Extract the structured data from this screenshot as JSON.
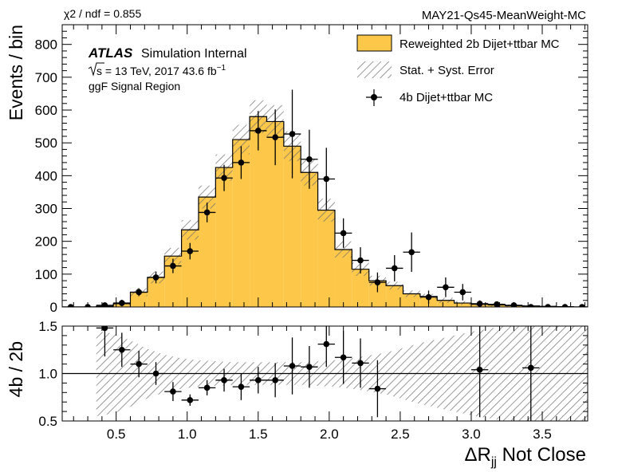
{
  "header": {
    "chi2": "χ2 / ndf = 0.855",
    "tag": "MAY21-Qs45-MeanWeight-MC"
  },
  "labels": {
    "atlas": "ATLAS",
    "atlas_sub": "Simulation Internal",
    "energy_prefix": "s",
    "energy_text": " = 13 TeV, 2017 43.6 fb",
    "energy_sup": "−1",
    "region": "ggF Signal Region"
  },
  "colors": {
    "fill": "#fdc84a",
    "edge": "#000000",
    "hatch": "#6e6e6e"
  },
  "chart_data": [
    {
      "type": "bar",
      "panel": "main",
      "ylabel": "Events / bin",
      "xlim": [
        0.12,
        3.82
      ],
      "ylim": [
        0,
        860
      ],
      "y_ticks": [
        0,
        100,
        200,
        300,
        400,
        500,
        600,
        700,
        800
      ],
      "legend": [
        "Reweighted 2b Dijet+ttbar MC",
        "Stat. + Syst. Error",
        "4b Dijet+ttbar MC"
      ],
      "legend_position": "top-right",
      "bin_edges": [
        0.12,
        0.24,
        0.36,
        0.48,
        0.6,
        0.72,
        0.84,
        0.96,
        1.08,
        1.2,
        1.32,
        1.44,
        1.56,
        1.68,
        1.8,
        1.92,
        2.04,
        2.16,
        2.28,
        2.4,
        2.52,
        2.64,
        2.76,
        2.88,
        3.0,
        3.12,
        3.24,
        3.36,
        3.48,
        3.6,
        3.72,
        3.82
      ],
      "series": [
        {
          "name": "Reweighted 2b Dijet+ttbar MC",
          "style": "step-filled",
          "values": [
            0,
            0,
            2,
            10,
            45,
            90,
            155,
            235,
            335,
            425,
            510,
            580,
            565,
            490,
            410,
            295,
            175,
            115,
            80,
            65,
            40,
            32,
            20,
            12,
            8,
            6,
            4,
            3,
            2,
            1,
            0
          ],
          "err": [
            0,
            0,
            2,
            6,
            12,
            18,
            25,
            30,
            35,
            40,
            45,
            50,
            50,
            45,
            40,
            35,
            25,
            20,
            15,
            12,
            10,
            8,
            8,
            6,
            5,
            5,
            4,
            3,
            2,
            1,
            0
          ]
        },
        {
          "name": "4b Dijet+ttbar MC",
          "style": "points",
          "x": [
            0.18,
            0.3,
            0.42,
            0.54,
            0.66,
            0.78,
            0.9,
            1.02,
            1.14,
            1.26,
            1.38,
            1.5,
            1.62,
            1.74,
            1.86,
            1.98,
            2.1,
            2.22,
            2.34,
            2.46,
            2.58,
            2.7,
            2.82,
            2.94,
            3.06,
            3.18,
            3.3,
            3.42,
            3.54,
            3.66,
            3.78
          ],
          "y": [
            0,
            0,
            5,
            12,
            45,
            90,
            125,
            170,
            288,
            393,
            440,
            537,
            517,
            527,
            450,
            390,
            225,
            142,
            75,
            118,
            167,
            30,
            60,
            45,
            10,
            8,
            5,
            0,
            0,
            0,
            0
          ],
          "err": [
            0,
            0,
            8,
            10,
            12,
            18,
            22,
            25,
            30,
            40,
            50,
            60,
            85,
            135,
            90,
            95,
            45,
            40,
            30,
            40,
            60,
            20,
            30,
            25,
            10,
            8,
            6,
            0,
            0,
            0,
            0
          ]
        }
      ]
    },
    {
      "type": "scatter",
      "panel": "ratio",
      "xlabel": "ΔR",
      "xlabel_sub": "jj",
      "xlabel_rest": " Not Close",
      "ylabel": "4b / 2b",
      "xlim": [
        0.12,
        3.82
      ],
      "ylim": [
        0.5,
        1.5
      ],
      "x_ticks": [
        0.5,
        1.0,
        1.5,
        2.0,
        2.5,
        3.0,
        3.5
      ],
      "x_tick_labels": [
        "0.5",
        "1.0",
        "1.5",
        "2.0",
        "2.5",
        "3.0",
        "3.5"
      ],
      "y_ticks": [
        0.5,
        1.0,
        1.5
      ],
      "y_tick_labels": [
        "0.5",
        "1.0",
        "1.5"
      ],
      "reference_line": 1.0,
      "band": {
        "x": [
          0.36,
          0.48,
          0.6,
          0.72,
          0.84,
          0.96,
          1.08,
          1.2,
          1.32,
          1.44,
          1.56,
          1.68,
          1.8,
          1.92,
          2.04,
          2.16,
          2.28,
          2.4,
          2.52,
          2.64,
          2.76,
          2.88,
          3.0,
          3.12,
          3.24,
          3.36,
          3.48,
          3.6,
          3.72,
          3.82
        ],
        "half_width": [
          0.45,
          0.42,
          0.35,
          0.26,
          0.2,
          0.16,
          0.14,
          0.13,
          0.12,
          0.12,
          0.12,
          0.12,
          0.12,
          0.13,
          0.14,
          0.16,
          0.19,
          0.22,
          0.27,
          0.32,
          0.36,
          0.4,
          0.44,
          0.47,
          0.5,
          0.52,
          0.54,
          0.56,
          0.58,
          0.6
        ]
      },
      "points": {
        "x": [
          0.42,
          0.54,
          0.66,
          0.78,
          0.9,
          1.02,
          1.14,
          1.26,
          1.38,
          1.5,
          1.62,
          1.74,
          1.86,
          1.98,
          2.1,
          2.22,
          2.34,
          3.06,
          3.42
        ],
        "y": [
          1.48,
          1.25,
          1.1,
          1.0,
          0.81,
          0.72,
          0.85,
          0.93,
          0.86,
          0.93,
          0.93,
          1.08,
          1.07,
          1.31,
          1.17,
          1.11,
          0.84,
          1.04,
          1.06
        ],
        "err": [
          0.3,
          0.18,
          0.14,
          0.12,
          0.1,
          0.06,
          0.08,
          0.12,
          0.14,
          0.14,
          0.18,
          0.3,
          0.22,
          0.24,
          0.28,
          0.26,
          0.3,
          0.5,
          0.7
        ]
      }
    }
  ]
}
